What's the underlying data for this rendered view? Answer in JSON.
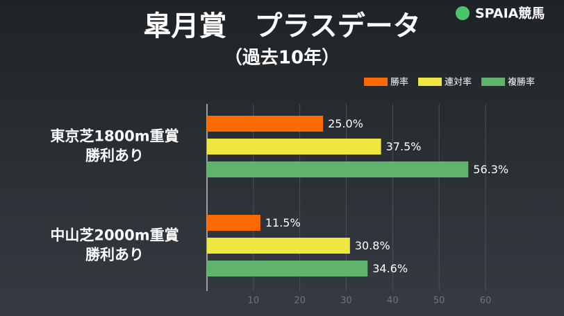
{
  "logo": "SPAIA競馬",
  "chart_data": {
    "type": "hbar",
    "title": "皐月賞　プラスデータ",
    "subtitle": "（過去10年）",
    "categories": [
      [
        "東京芝1800m重賞",
        "勝利あり"
      ],
      [
        "中山芝2000m重賞",
        "勝利あり"
      ]
    ],
    "series": [
      {
        "name": "勝率",
        "color": "#ff6a00",
        "values": [
          25.0,
          11.5
        ],
        "value_labels": [
          "25.0%",
          "11.5%"
        ]
      },
      {
        "name": "連対率",
        "color": "#efe640",
        "values": [
          37.5,
          30.8
        ],
        "value_labels": [
          "37.5%",
          "30.8%"
        ]
      },
      {
        "name": "複勝率",
        "color": "#5fb36b",
        "values": [
          56.3,
          34.6
        ],
        "value_labels": [
          "56.3%",
          "34.6%"
        ]
      }
    ],
    "xlim": [
      0,
      60
    ],
    "xticks": [
      10,
      20,
      30,
      40,
      50,
      60
    ],
    "grid": true,
    "legend": "top-right"
  }
}
